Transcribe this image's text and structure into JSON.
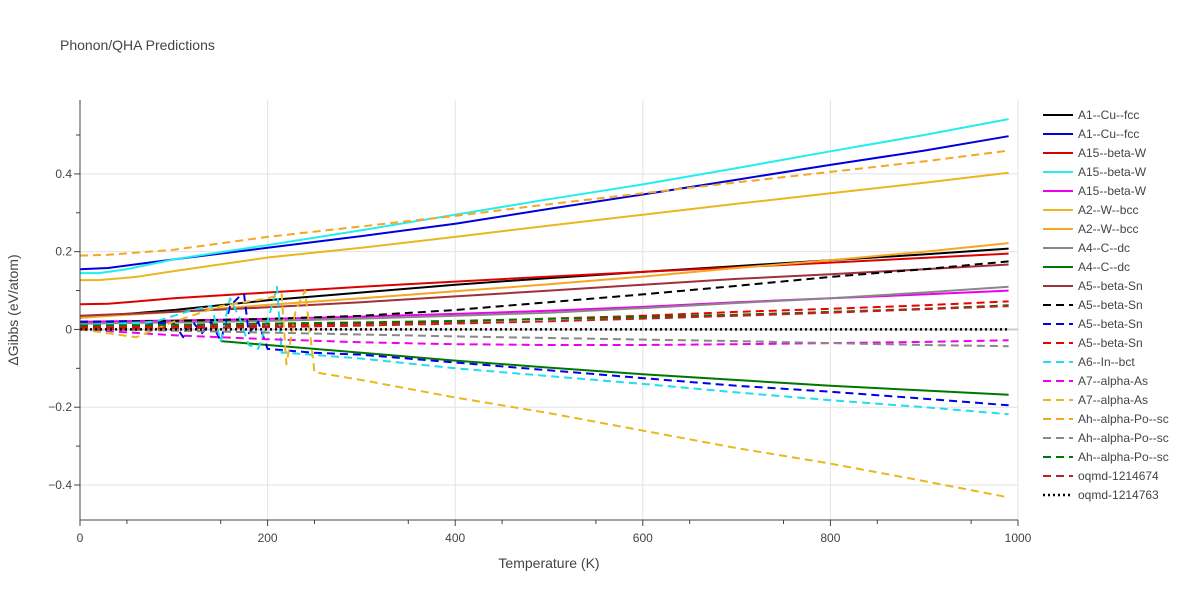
{
  "chart_data": {
    "type": "line",
    "title": "Phonon/QHA Predictions",
    "xlabel": "Temperature (K)",
    "ylabel": "ΔGibbs (eV/atom)",
    "xlim": [
      0,
      1000
    ],
    "ylim": [
      -0.49,
      0.59
    ],
    "xticks": [
      0,
      200,
      400,
      600,
      800,
      1000
    ],
    "xtick_labels": [
      "0",
      "200",
      "400",
      "600",
      "800",
      "1000"
    ],
    "yticks": [
      -0.4,
      -0.2,
      0,
      0.2,
      0.4
    ],
    "ytick_labels": [
      "−0.4",
      "−0.2",
      "0",
      "0.2",
      "0.4"
    ],
    "grid": true,
    "legend_position": "right",
    "series": [
      {
        "name": "A1--Cu--fcc",
        "color": "#000000",
        "dash": "solid",
        "x": [
          0,
          100,
          200,
          300,
          400,
          500,
          600,
          700,
          800,
          900,
          990
        ],
        "y": [
          0.03,
          0.05,
          0.075,
          0.095,
          0.115,
          0.132,
          0.148,
          0.163,
          0.178,
          0.193,
          0.208
        ]
      },
      {
        "name": "A1--Cu--fcc",
        "color": "#0000dd",
        "dash": "solid",
        "x": [
          0,
          30,
          100,
          200,
          300,
          400,
          500,
          600,
          700,
          800,
          900,
          990
        ],
        "y": [
          0.155,
          0.158,
          0.18,
          0.21,
          0.24,
          0.272,
          0.31,
          0.347,
          0.385,
          0.423,
          0.46,
          0.497
        ]
      },
      {
        "name": "A15--beta-W",
        "color": "#dd0000",
        "dash": "solid",
        "x": [
          0,
          30,
          100,
          200,
          300,
          400,
          500,
          600,
          700,
          800,
          900,
          990
        ],
        "y": [
          0.065,
          0.066,
          0.08,
          0.095,
          0.11,
          0.123,
          0.136,
          0.148,
          0.16,
          0.172,
          0.184,
          0.195
        ]
      },
      {
        "name": "A15--beta-W",
        "color": "#22eeee",
        "dash": "solid",
        "x": [
          0,
          20,
          50,
          100,
          200,
          300,
          400,
          500,
          600,
          700,
          800,
          900,
          990
        ],
        "y": [
          0.145,
          0.145,
          0.155,
          0.18,
          0.217,
          0.255,
          0.295,
          0.335,
          0.373,
          0.415,
          0.458,
          0.5,
          0.541
        ]
      },
      {
        "name": "A15--beta-W",
        "color": "#ee00ee",
        "dash": "solid",
        "x": [
          0,
          100,
          200,
          300,
          400,
          500,
          600,
          700,
          800,
          900,
          990
        ],
        "y": [
          0.02,
          0.023,
          0.027,
          0.033,
          0.04,
          0.048,
          0.058,
          0.07,
          0.08,
          0.09,
          0.1
        ]
      },
      {
        "name": "A2--W--bcc",
        "color": "#e8b820",
        "dash": "solid",
        "x": [
          0,
          20,
          60,
          100,
          200,
          300,
          400,
          500,
          600,
          700,
          800,
          900,
          990
        ],
        "y": [
          0.127,
          0.127,
          0.135,
          0.15,
          0.185,
          0.21,
          0.238,
          0.267,
          0.295,
          0.323,
          0.35,
          0.377,
          0.403
        ]
      },
      {
        "name": "A2--W--bcc",
        "color": "#f5a623",
        "dash": "solid",
        "x": [
          0,
          100,
          200,
          300,
          400,
          500,
          600,
          700,
          800,
          900,
          990
        ],
        "y": [
          0.03,
          0.045,
          0.063,
          0.08,
          0.098,
          0.116,
          0.136,
          0.158,
          0.178,
          0.2,
          0.222
        ]
      },
      {
        "name": "A4--C--dc",
        "color": "#888888",
        "dash": "solid",
        "x": [
          0,
          100,
          200,
          300,
          400,
          500,
          600,
          700,
          800,
          900,
          990
        ],
        "y": [
          0.015,
          0.018,
          0.022,
          0.028,
          0.035,
          0.043,
          0.055,
          0.068,
          0.08,
          0.095,
          0.11
        ]
      },
      {
        "name": "A4--C--dc",
        "color": "#007700",
        "dash": "solid",
        "x": [
          150,
          200,
          300,
          400,
          500,
          600,
          700,
          800,
          900,
          990
        ],
        "y": [
          -0.03,
          -0.04,
          -0.06,
          -0.08,
          -0.098,
          -0.115,
          -0.13,
          -0.145,
          -0.157,
          -0.168
        ]
      },
      {
        "name": "A5--beta-Sn",
        "color": "#a0303a",
        "dash": "solid",
        "x": [
          0,
          100,
          200,
          300,
          400,
          500,
          600,
          700,
          800,
          900,
          990
        ],
        "y": [
          0.035,
          0.045,
          0.057,
          0.07,
          0.085,
          0.1,
          0.115,
          0.13,
          0.142,
          0.155,
          0.167
        ]
      },
      {
        "name": "A5--beta-Sn",
        "color": "#000000",
        "dash": "dash",
        "x": [
          0,
          100,
          200,
          300,
          400,
          500,
          600,
          700,
          800,
          900,
          990
        ],
        "y": [
          0.02,
          0.022,
          0.027,
          0.035,
          0.05,
          0.07,
          0.09,
          0.112,
          0.135,
          0.155,
          0.175
        ]
      },
      {
        "name": "A5--beta-Sn",
        "color": "#0000ee",
        "dash": "dash",
        "x": [
          0,
          50,
          100,
          110,
          120,
          130,
          140,
          150,
          160,
          170,
          175,
          180,
          190,
          200,
          250,
          300,
          400,
          500,
          600,
          700,
          800,
          900,
          990
        ],
        "y": [
          0.02,
          0.02,
          0.015,
          -0.02,
          0.02,
          -0.01,
          0.02,
          -0.03,
          0.06,
          0.085,
          0.09,
          -0.01,
          0.02,
          -0.05,
          -0.06,
          -0.065,
          -0.085,
          -0.105,
          -0.125,
          -0.145,
          -0.16,
          -0.178,
          -0.195
        ]
      },
      {
        "name": "A5--beta-Sn",
        "color": "#ee0000",
        "dash": "dash",
        "x": [
          0,
          100,
          200,
          300,
          400,
          500,
          600,
          700,
          800,
          900,
          990
        ],
        "y": [
          0.005,
          0.007,
          0.01,
          0.015,
          0.02,
          0.028,
          0.035,
          0.045,
          0.053,
          0.062,
          0.072
        ]
      },
      {
        "name": "A6--In--bct",
        "color": "#22ddee",
        "dash": "dash",
        "x": [
          0,
          40,
          80,
          120,
          140,
          150,
          160,
          170,
          180,
          190,
          200,
          210,
          215,
          220,
          300,
          400,
          500,
          600,
          700,
          800,
          900,
          990
        ],
        "y": [
          0.01,
          0.015,
          0.02,
          0.05,
          0.06,
          -0.03,
          0.08,
          0.03,
          -0.04,
          -0.05,
          0.02,
          0.11,
          -0.06,
          -0.06,
          -0.075,
          -0.1,
          -0.12,
          -0.14,
          -0.162,
          -0.182,
          -0.2,
          -0.218
        ]
      },
      {
        "name": "A7--alpha-As",
        "color": "#ee00ee",
        "dash": "dash",
        "x": [
          0,
          100,
          200,
          300,
          400,
          500,
          600,
          700,
          800,
          900,
          990
        ],
        "y": [
          0.0,
          -0.015,
          -0.025,
          -0.033,
          -0.038,
          -0.04,
          -0.04,
          -0.038,
          -0.035,
          -0.032,
          -0.028
        ]
      },
      {
        "name": "A7--alpha-As",
        "color": "#e8b820",
        "dash": "dash",
        "x": [
          0,
          60,
          100,
          150,
          200,
          215,
          220,
          230,
          240,
          250,
          300,
          400,
          500,
          600,
          700,
          800,
          900,
          990
        ],
        "y": [
          0.0,
          -0.02,
          0.02,
          0.06,
          0.08,
          0.09,
          -0.09,
          0.05,
          0.1,
          -0.11,
          -0.13,
          -0.175,
          -0.215,
          -0.26,
          -0.305,
          -0.345,
          -0.39,
          -0.432
        ]
      },
      {
        "name": "Ah--alpha-Po--sc",
        "color": "#f5a623",
        "dash": "dash",
        "x": [
          0,
          30,
          100,
          200,
          300,
          400,
          500,
          600,
          700,
          800,
          900,
          990
        ],
        "y": [
          0.19,
          0.192,
          0.205,
          0.238,
          0.265,
          0.292,
          0.322,
          0.35,
          0.378,
          0.405,
          0.432,
          0.46
        ]
      },
      {
        "name": "Ah--alpha-Po--sc",
        "color": "#888888",
        "dash": "dash",
        "x": [
          0,
          100,
          200,
          300,
          400,
          500,
          600,
          700,
          800,
          900,
          990
        ],
        "y": [
          0.0,
          -0.003,
          -0.008,
          -0.013,
          -0.018,
          -0.022,
          -0.026,
          -0.03,
          -0.035,
          -0.04,
          -0.043
        ]
      },
      {
        "name": "Ah--alpha-Po--sc",
        "color": "#007700",
        "dash": "dash",
        "x": [
          0,
          100,
          200,
          300,
          400,
          500,
          600,
          700,
          800,
          900,
          990
        ],
        "y": [
          0.01,
          0.012,
          0.015,
          0.018,
          0.022,
          0.027,
          0.032,
          0.038,
          0.045,
          0.053,
          0.062
        ]
      },
      {
        "name": "oqmd-1214674",
        "color": "#c02020",
        "dash": "dash",
        "x": [
          0,
          100,
          200,
          300,
          400,
          500,
          600,
          700,
          800,
          900,
          990
        ],
        "y": [
          0.0,
          0.003,
          0.006,
          0.01,
          0.015,
          0.021,
          0.028,
          0.035,
          0.043,
          0.052,
          0.06
        ]
      },
      {
        "name": "oqmd-1214763",
        "color": "#000000",
        "dash": "dot",
        "x": [
          0,
          990
        ],
        "y": [
          0.0,
          0.0
        ]
      }
    ]
  }
}
